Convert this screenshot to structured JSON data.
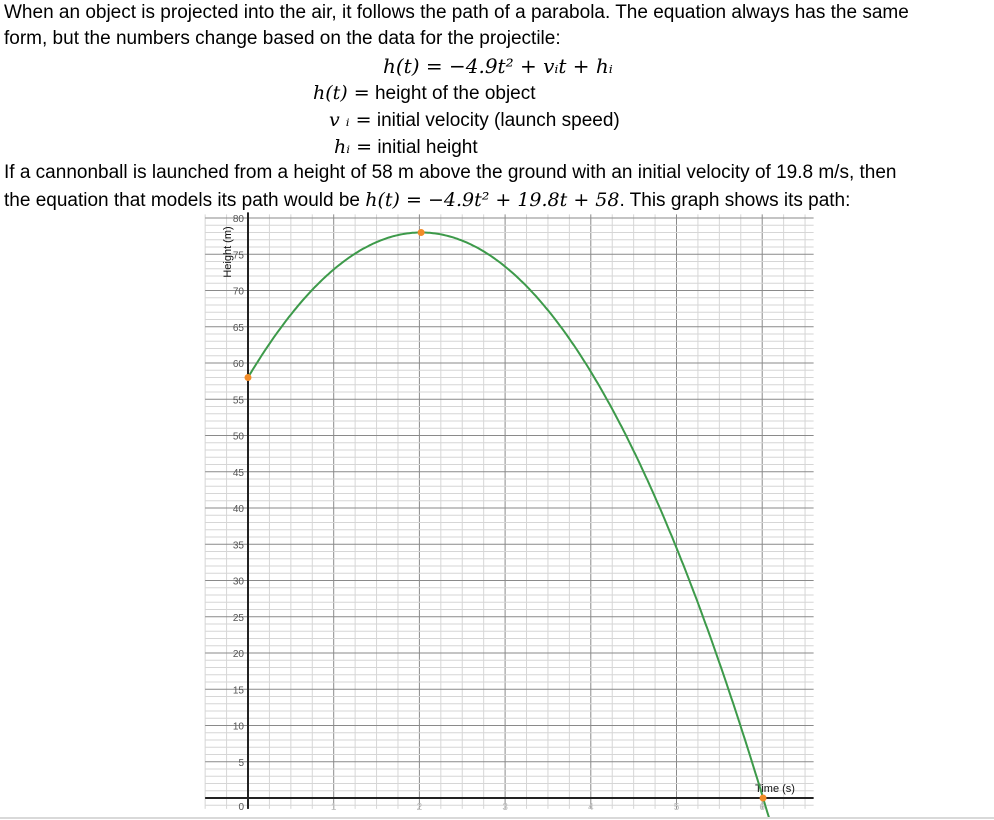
{
  "intro": {
    "line1": "When an object is projected into the air, it follows the path of a parabola.  The equation always has the same",
    "line2": "form, but the numbers change based on the data for the projectile:"
  },
  "formula": {
    "main": "h(t) = −4.9t² + vᵢt  +  hᵢ",
    "defs": [
      {
        "symbol": "h(t) =",
        "meaning": "height of the object"
      },
      {
        "symbol": "v ᵢ =",
        "meaning": "initial velocity (launch speed)"
      },
      {
        "symbol": "hᵢ =",
        "meaning": "initial height"
      }
    ]
  },
  "example": {
    "line1": "If a cannonball is launched from a height of 58 m above the ground with an initial velocity of 19.8 m/s, then",
    "line2_pre": "the equation that models its path would be ",
    "line2_eq": "h(t) = −4.9t² + 19.8t + 58",
    "line2_post": ". This graph shows its path:"
  },
  "chart_data": {
    "type": "line",
    "equation": "h(t) = -4.9t^2 + 19.8t + 58",
    "xlabel": "Time (s)",
    "ylabel": "Height (m)",
    "xlim": [
      -0.5,
      6.6
    ],
    "ylim": [
      -1.5,
      80.5
    ],
    "x_ticks": [
      "0",
      "1",
      "2",
      "3",
      "4",
      "5",
      "6"
    ],
    "y_ticks": [
      "5",
      "10",
      "15",
      "20",
      "25",
      "30",
      "35",
      "40",
      "45",
      "50",
      "55",
      "60",
      "65",
      "70",
      "75",
      "80"
    ],
    "grid": true,
    "curve_color": "#3d9a4a",
    "point_color": "#f28c28",
    "points": [
      {
        "t": 0,
        "h": 58
      },
      {
        "t": 2.02,
        "h": 78.0
      },
      {
        "t": 6.01,
        "h": 0
      }
    ]
  }
}
